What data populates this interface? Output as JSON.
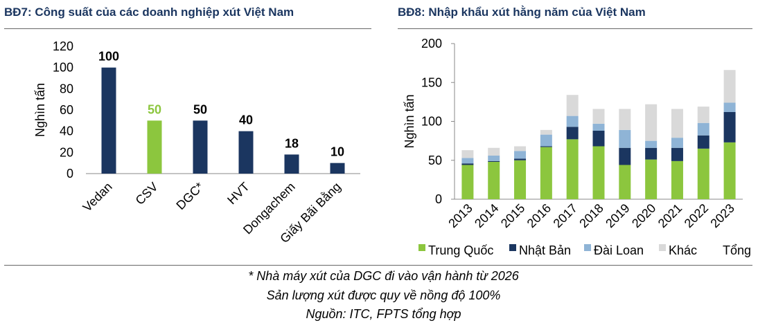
{
  "chart_data": [
    {
      "type": "bar",
      "title": "BĐ7: Công suất của các doanh nghiệp xút Việt Nam",
      "ylabel": "Nghìn tấn",
      "xlabel": "",
      "ylim": [
        0,
        120
      ],
      "yticks": [
        "0",
        "20",
        "40",
        "60",
        "80",
        "100",
        "120"
      ],
      "categories": [
        "Vedan",
        "CSV",
        "DGC*",
        "HVT",
        "Dongachem",
        "Giấy Bãi Bằng"
      ],
      "values": [
        100,
        50,
        50,
        40,
        18,
        10
      ],
      "data_labels": [
        "100",
        "50",
        "50",
        "40",
        "18",
        "10"
      ],
      "colors": [
        "#1b3660",
        "#8cc63e",
        "#1b3660",
        "#1b3660",
        "#1b3660",
        "#1b3660"
      ],
      "label_colors": [
        "#000000",
        "#8cc63e",
        "#000000",
        "#000000",
        "#000000",
        "#000000"
      ],
      "grid": false
    },
    {
      "type": "bar",
      "stacked": true,
      "title": "BĐ8: Nhập khẩu xút hằng năm của Việt Nam",
      "ylabel": "Nghìn tấn",
      "xlabel": "",
      "ylim": [
        0,
        200
      ],
      "yticks": [
        "0",
        "50",
        "100",
        "150",
        "200"
      ],
      "categories": [
        "2013",
        "2014",
        "2015",
        "2016",
        "2017",
        "2018",
        "2019",
        "2020",
        "2021",
        "2022",
        "2023"
      ],
      "series": [
        {
          "name": "Trung Quốc",
          "color": "#8cc63e",
          "values": [
            44,
            48,
            50,
            67,
            77,
            68,
            44,
            51,
            49,
            65,
            73
          ]
        },
        {
          "name": "Nhật Bản",
          "color": "#1b3660",
          "values": [
            2,
            1,
            2,
            1,
            16,
            20,
            22,
            15,
            17,
            17,
            39
          ]
        },
        {
          "name": "Đài Loan",
          "color": "#8fb4d6",
          "values": [
            7,
            7,
            10,
            15,
            14,
            9,
            23,
            9,
            13,
            16,
            12
          ]
        },
        {
          "name": "Khác",
          "color": "#d9d9d9",
          "values": [
            10,
            10,
            6,
            6,
            27,
            19,
            27,
            47,
            37,
            21,
            42
          ]
        }
      ],
      "legend": [
        "Trung Quốc",
        "Nhật Bản",
        "Đài Loan",
        "Khác",
        "Tổng"
      ],
      "legend_position": "bottom",
      "grid": false
    }
  ],
  "footnotes": [
    "* Nhà máy xút của DGC đi vào vận hành từ 2026",
    "Sản lượng xút được quy về nồng độ 100%",
    "Nguồn: ITC, FPTS tổng hợp"
  ]
}
